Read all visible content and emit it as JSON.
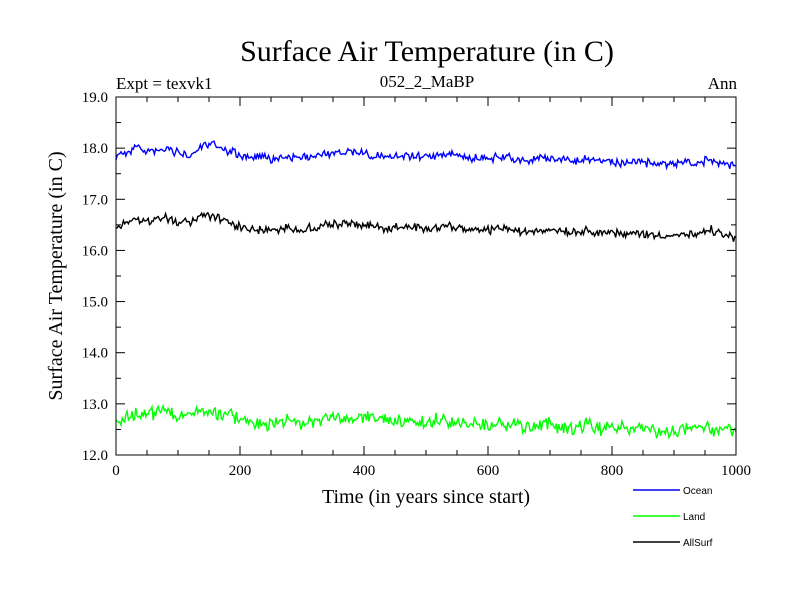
{
  "chart_data": {
    "type": "line",
    "title": "Surface Air Temperature (in C)",
    "subtitle": "052_2_MaBP",
    "left_label": "Expt = texvk1",
    "right_label": "Ann",
    "xlabel": "Time (in years since start)",
    "ylabel": "Surface Air Temperature (in C)",
    "xlim": [
      0,
      1000
    ],
    "ylim": [
      12.0,
      19.0
    ],
    "xticks": [
      "0",
      "200",
      "400",
      "600",
      "800",
      "1000"
    ],
    "yticks": [
      "12.0",
      "13.0",
      "14.0",
      "15.0",
      "16.0",
      "17.0",
      "18.0",
      "19.0"
    ],
    "xtick_values": [
      0,
      200,
      400,
      600,
      800,
      1000
    ],
    "ytick_values": [
      12,
      13,
      14,
      15,
      16,
      17,
      18,
      19
    ],
    "legend_position": "bottom-right, outside plot",
    "series": [
      {
        "name": "Ocean",
        "color": "#0000ff",
        "x": [
          0,
          20,
          40,
          60,
          80,
          100,
          120,
          140,
          160,
          180,
          200,
          220,
          240,
          260,
          280,
          300,
          320,
          340,
          360,
          380,
          400,
          420,
          440,
          460,
          480,
          500,
          520,
          540,
          560,
          580,
          600,
          620,
          640,
          660,
          680,
          700,
          720,
          740,
          760,
          780,
          800,
          820,
          840,
          860,
          880,
          900,
          920,
          940,
          960,
          980,
          1000
        ],
        "values": [
          17.85,
          17.95,
          18.0,
          17.9,
          18.0,
          17.9,
          17.85,
          18.05,
          18.05,
          17.95,
          17.85,
          17.8,
          17.8,
          17.8,
          17.85,
          17.8,
          17.85,
          17.9,
          17.9,
          17.95,
          17.9,
          17.85,
          17.85,
          17.85,
          17.85,
          17.85,
          17.85,
          17.9,
          17.8,
          17.8,
          17.8,
          17.85,
          17.8,
          17.75,
          17.8,
          17.8,
          17.8,
          17.75,
          17.8,
          17.75,
          17.75,
          17.7,
          17.75,
          17.7,
          17.7,
          17.7,
          17.7,
          17.7,
          17.8,
          17.7,
          17.65
        ]
      },
      {
        "name": "Land",
        "color": "#00ff00",
        "x": [
          0,
          20,
          40,
          60,
          80,
          100,
          120,
          140,
          160,
          180,
          200,
          220,
          240,
          260,
          280,
          300,
          320,
          340,
          360,
          380,
          400,
          420,
          440,
          460,
          480,
          500,
          520,
          540,
          560,
          580,
          600,
          620,
          640,
          660,
          680,
          700,
          720,
          740,
          760,
          780,
          800,
          820,
          840,
          860,
          880,
          900,
          920,
          940,
          960,
          980,
          1000
        ],
        "values": [
          12.6,
          12.75,
          12.85,
          12.8,
          12.9,
          12.75,
          12.8,
          12.85,
          12.8,
          12.8,
          12.7,
          12.65,
          12.6,
          12.65,
          12.7,
          12.6,
          12.65,
          12.75,
          12.7,
          12.7,
          12.75,
          12.7,
          12.7,
          12.65,
          12.65,
          12.6,
          12.7,
          12.65,
          12.6,
          12.6,
          12.55,
          12.6,
          12.6,
          12.55,
          12.55,
          12.6,
          12.55,
          12.5,
          12.6,
          12.5,
          12.55,
          12.5,
          12.55,
          12.5,
          12.45,
          12.45,
          12.5,
          12.5,
          12.5,
          12.5,
          12.45
        ]
      },
      {
        "name": "AllSurf",
        "color": "#000000",
        "x": [
          0,
          20,
          40,
          60,
          80,
          100,
          120,
          140,
          160,
          180,
          200,
          220,
          240,
          260,
          280,
          300,
          320,
          340,
          360,
          380,
          400,
          420,
          440,
          460,
          480,
          500,
          520,
          540,
          560,
          580,
          600,
          620,
          640,
          660,
          680,
          700,
          720,
          740,
          760,
          780,
          800,
          820,
          840,
          860,
          880,
          900,
          920,
          940,
          960,
          980,
          1000
        ],
        "values": [
          16.45,
          16.55,
          16.6,
          16.55,
          16.65,
          16.55,
          16.55,
          16.7,
          16.65,
          16.55,
          16.45,
          16.4,
          16.4,
          16.4,
          16.45,
          16.4,
          16.45,
          16.5,
          16.5,
          16.55,
          16.5,
          16.45,
          16.45,
          16.45,
          16.45,
          16.45,
          16.45,
          16.5,
          16.4,
          16.4,
          16.4,
          16.45,
          16.4,
          16.35,
          16.4,
          16.4,
          16.4,
          16.35,
          16.4,
          16.35,
          16.35,
          16.3,
          16.35,
          16.3,
          16.3,
          16.3,
          16.3,
          16.3,
          16.4,
          16.3,
          16.25
        ]
      }
    ]
  }
}
